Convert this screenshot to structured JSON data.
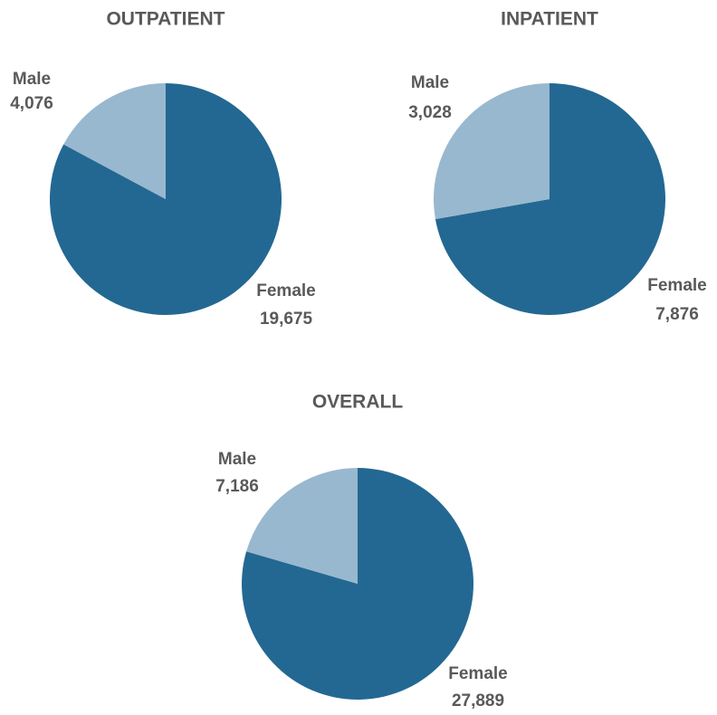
{
  "chart_data": [
    {
      "type": "pie",
      "title": "OUTPATIENT",
      "categories": [
        "Female",
        "Male"
      ],
      "values": [
        19675,
        4076
      ],
      "value_labels": [
        "19,675",
        "4,076"
      ],
      "colors": [
        "#236892",
        "#98b8cf"
      ]
    },
    {
      "type": "pie",
      "title": "INPATIENT",
      "categories": [
        "Female",
        "Male"
      ],
      "values": [
        7876,
        3028
      ],
      "value_labels": [
        "7,876",
        "3,028"
      ],
      "colors": [
        "#236892",
        "#98b8cf"
      ]
    },
    {
      "type": "pie",
      "title": "OVERALL",
      "categories": [
        "Female",
        "Male"
      ],
      "values": [
        27889,
        7186
      ],
      "value_labels": [
        "27,889",
        "7,186"
      ],
      "colors": [
        "#236892",
        "#98b8cf"
      ]
    }
  ]
}
